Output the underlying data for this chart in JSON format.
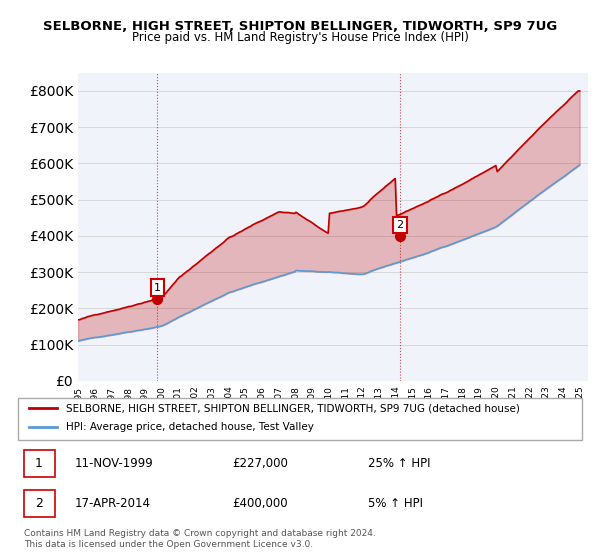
{
  "title": "SELBORNE, HIGH STREET, SHIPTON BELLINGER, TIDWORTH, SP9 7UG",
  "subtitle": "Price paid vs. HM Land Registry's House Price Index (HPI)",
  "legend_line1": "SELBORNE, HIGH STREET, SHIPTON BELLINGER, TIDWORTH, SP9 7UG (detached house)",
  "legend_line2": "HPI: Average price, detached house, Test Valley",
  "annotation1_label": "1",
  "annotation1_date": "11-NOV-1999",
  "annotation1_price": "£227,000",
  "annotation1_hpi": "25% ↑ HPI",
  "annotation2_label": "2",
  "annotation2_date": "17-APR-2014",
  "annotation2_price": "£400,000",
  "annotation2_hpi": "5% ↑ HPI",
  "footer": "Contains HM Land Registry data © Crown copyright and database right 2024.\nThis data is licensed under the Open Government Licence v3.0.",
  "hpi_color": "#5b9bd5",
  "price_color": "#c00000",
  "dot_color": "#c00000",
  "annotation_box_color": "#cc0000",
  "ylim": [
    0,
    850000
  ],
  "yticks": [
    0,
    100000,
    200000,
    300000,
    400000,
    500000,
    600000,
    700000,
    800000
  ],
  "ylabel_format": "£{0}K",
  "background_color": "#f0f4fa"
}
